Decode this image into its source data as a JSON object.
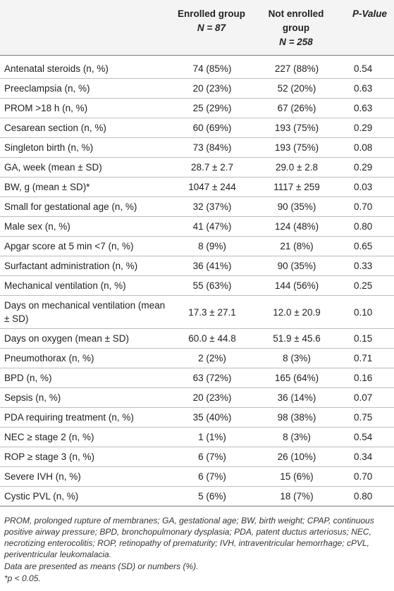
{
  "header": {
    "col1": "",
    "col2_line1": "Enrolled group",
    "col2_line2": "N = 87",
    "col3_line1": "Not enrolled",
    "col3_line2": "group",
    "col3_line3": "N = 258",
    "col4": "P-Value"
  },
  "rows": [
    {
      "label": "Antenatal steroids (n, %)",
      "enrolled": "74 (85%)",
      "not_enrolled": "227 (88%)",
      "p": "0.54"
    },
    {
      "label": "Preeclampsia (n, %)",
      "enrolled": "20 (23%)",
      "not_enrolled": "52 (20%)",
      "p": "0.63"
    },
    {
      "label": "PROM >18 h (n, %)",
      "enrolled": "25 (29%)",
      "not_enrolled": "67 (26%)",
      "p": "0.63"
    },
    {
      "label": "Cesarean section (n, %)",
      "enrolled": "60 (69%)",
      "not_enrolled": "193 (75%)",
      "p": "0.29"
    },
    {
      "label": "Singleton birth (n, %)",
      "enrolled": "73 (84%)",
      "not_enrolled": "193 (75%)",
      "p": "0.08"
    },
    {
      "label": "GA, week (mean ± SD)",
      "enrolled": "28.7 ± 2.7",
      "not_enrolled": "29.0 ± 2.8",
      "p": "0.29"
    },
    {
      "label": "BW, g (mean ± SD)*",
      "enrolled": "1047 ± 244",
      "not_enrolled": "1117 ± 259",
      "p": "0.03"
    },
    {
      "label": "Small for gestational age (n, %)",
      "enrolled": "32 (37%)",
      "not_enrolled": "90 (35%)",
      "p": "0.70"
    },
    {
      "label": "Male sex (n, %)",
      "enrolled": "41 (47%)",
      "not_enrolled": "124 (48%)",
      "p": "0.80"
    },
    {
      "label": "Apgar score at 5 min <7 (n, %)",
      "enrolled": "8 (9%)",
      "not_enrolled": "21 (8%)",
      "p": "0.65"
    },
    {
      "label": "Surfactant administration (n, %)",
      "enrolled": "36 (41%)",
      "not_enrolled": "90 (35%)",
      "p": "0.33"
    },
    {
      "label": "Mechanical ventilation (n, %)",
      "enrolled": "55 (63%)",
      "not_enrolled": "144 (56%)",
      "p": "0.25"
    },
    {
      "label": "Days on mechanical ventilation (mean ± SD)",
      "enrolled": "17.3 ± 27.1",
      "not_enrolled": "12.0 ± 20.9",
      "p": "0.10"
    },
    {
      "label": "Days on oxygen (mean ± SD)",
      "enrolled": "60.0 ± 44.8",
      "not_enrolled": "51.9 ± 45.6",
      "p": "0.15"
    },
    {
      "label": "Pneumothorax (n, %)",
      "enrolled": "2 (2%)",
      "not_enrolled": "8 (3%)",
      "p": "0.71"
    },
    {
      "label": "BPD (n, %)",
      "enrolled": "63 (72%)",
      "not_enrolled": "165 (64%)",
      "p": "0.16"
    },
    {
      "label": "Sepsis (n, %)",
      "enrolled": "20 (23%)",
      "not_enrolled": "36 (14%)",
      "p": "0.07"
    },
    {
      "label": "PDA requiring treatment (n, %)",
      "enrolled": "35 (40%)",
      "not_enrolled": "98 (38%)",
      "p": "0.75"
    },
    {
      "label": "NEC ≥ stage 2 (n, %)",
      "enrolled": "1 (1%)",
      "not_enrolled": "8 (3%)",
      "p": "0.54"
    },
    {
      "label": "ROP ≥ stage 3 (n, %)",
      "enrolled": "6 (7%)",
      "not_enrolled": "26 (10%)",
      "p": "0.34"
    },
    {
      "label": "Severe IVH (n, %)",
      "enrolled": "6 (7%)",
      "not_enrolled": "15 (6%)",
      "p": "0.70"
    },
    {
      "label": "Cystic PVL (n, %)",
      "enrolled": "5 (6%)",
      "not_enrolled": "18 (7%)",
      "p": "0.80"
    }
  ],
  "footnotes": {
    "abbreviations": "PROM, prolonged rupture of membranes; GA, gestational age; BW, birth weight; CPAP, continuous positive airway pressure; BPD, bronchopulmonary dysplasia; PDA, patent ductus arteriosus; NEC, necrotizing enterocolitis; ROP, retinopathy of prematurity; IVH, intraventricular hemorrhage; cPVL, periventricular leukomalacia.",
    "data_note": "Data are presented as means (SD) or numbers (%).",
    "significance": "*p < 0.05."
  }
}
